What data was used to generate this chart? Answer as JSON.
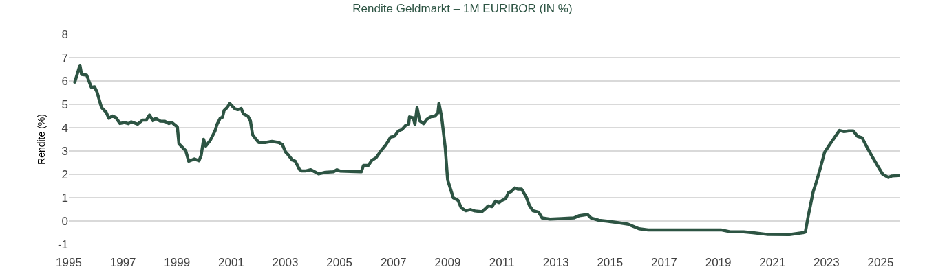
{
  "chart_data": {
    "type": "line",
    "title": "Rendite Geldmarkt – 1M EURIBOR (IN %)",
    "ylabel": "Rendite (%)",
    "x": [
      1995.22,
      1995.41,
      1995.47,
      1995.66,
      1995.83,
      1995.95,
      1996.04,
      1996.21,
      1996.38,
      1996.48,
      1996.61,
      1996.74,
      1996.89,
      1997.06,
      1997.2,
      1997.31,
      1997.54,
      1997.72,
      1997.86,
      1997.98,
      1998.11,
      1998.21,
      1998.38,
      1998.55,
      1998.7,
      1998.8,
      1999.01,
      1999.07,
      1999.22,
      1999.32,
      1999.43,
      1999.64,
      1999.81,
      1999.89,
      1999.98,
      2000.06,
      2000.23,
      2000.4,
      2000.48,
      2000.59,
      2000.68,
      2000.74,
      2000.85,
      2000.95,
      2001.12,
      2001.24,
      2001.37,
      2001.45,
      2001.62,
      2001.71,
      2001.79,
      2001.9,
      2002.02,
      2002.25,
      2002.51,
      2002.76,
      2002.89,
      2003.01,
      2003.09,
      2003.26,
      2003.37,
      2003.53,
      2003.6,
      2003.77,
      2003.94,
      2004.23,
      2004.48,
      2004.78,
      2004.91,
      2005.03,
      2005.81,
      2005.89,
      2006.07,
      2006.2,
      2006.36,
      2006.55,
      2006.72,
      2006.89,
      2007.04,
      2007.18,
      2007.31,
      2007.44,
      2007.56,
      2007.59,
      2007.73,
      2007.79,
      2007.87,
      2007.97,
      2008.11,
      2008.23,
      2008.36,
      2008.53,
      2008.64,
      2008.68,
      2008.78,
      2008.91,
      2009.0,
      2009.08,
      2009.21,
      2009.38,
      2009.5,
      2009.67,
      2009.84,
      2010.01,
      2010.27,
      2010.39,
      2010.5,
      2010.64,
      2010.77,
      2010.9,
      2011.02,
      2011.14,
      2011.25,
      2011.35,
      2011.48,
      2011.59,
      2011.73,
      2011.9,
      2012.02,
      2012.15,
      2012.36,
      2012.49,
      2012.78,
      2013.2,
      2013.66,
      2013.87,
      2014.17,
      2014.3,
      2014.59,
      2014.89,
      2015.23,
      2015.65,
      2016.07,
      2016.41,
      2017.42,
      2019.1,
      2019.44,
      2019.94,
      2020.28,
      2020.79,
      2021.63,
      2022.13,
      2022.22,
      2022.32,
      2022.51,
      2022.62,
      2022.77,
      2022.93,
      2023.1,
      2023.3,
      2023.48,
      2023.65,
      2023.82,
      2023.99,
      2024.15,
      2024.32,
      2024.53,
      2024.7,
      2024.87,
      2025.08,
      2025.29,
      2025.42,
      2025.67
    ],
    "series": [
      {
        "color": "#2d5443",
        "values": [
          5.95,
          6.67,
          6.28,
          6.25,
          5.73,
          5.75,
          5.53,
          4.86,
          4.66,
          4.4,
          4.5,
          4.43,
          4.18,
          4.22,
          4.17,
          4.25,
          4.15,
          4.32,
          4.32,
          4.54,
          4.3,
          4.4,
          4.28,
          4.27,
          4.18,
          4.23,
          4.03,
          3.31,
          3.13,
          3.01,
          2.56,
          2.66,
          2.58,
          2.81,
          3.5,
          3.21,
          3.46,
          3.85,
          4.15,
          4.4,
          4.45,
          4.74,
          4.86,
          5.04,
          4.82,
          4.77,
          4.82,
          4.59,
          4.49,
          4.3,
          3.7,
          3.53,
          3.36,
          3.36,
          3.41,
          3.36,
          3.28,
          2.96,
          2.86,
          2.61,
          2.56,
          2.2,
          2.15,
          2.15,
          2.2,
          2.02,
          2.09,
          2.11,
          2.2,
          2.14,
          2.11,
          2.38,
          2.38,
          2.6,
          2.72,
          3.03,
          3.27,
          3.59,
          3.64,
          3.86,
          3.92,
          4.09,
          4.16,
          4.46,
          4.42,
          4.14,
          4.85,
          4.29,
          4.17,
          4.36,
          4.46,
          4.49,
          4.63,
          5.05,
          4.44,
          3.15,
          1.76,
          1.47,
          0.99,
          0.89,
          0.57,
          0.44,
          0.49,
          0.43,
          0.4,
          0.52,
          0.65,
          0.62,
          0.85,
          0.79,
          0.89,
          0.95,
          1.22,
          1.27,
          1.42,
          1.37,
          1.37,
          1.04,
          0.67,
          0.44,
          0.38,
          0.13,
          0.08,
          0.1,
          0.13,
          0.23,
          0.28,
          0.13,
          0.03,
          -0.01,
          -0.06,
          -0.13,
          -0.33,
          -0.38,
          -0.38,
          -0.38,
          -0.46,
          -0.46,
          -0.5,
          -0.57,
          -0.58,
          -0.5,
          -0.47,
          0.17,
          1.26,
          1.65,
          2.25,
          2.94,
          3.24,
          3.58,
          3.88,
          3.83,
          3.86,
          3.86,
          3.63,
          3.56,
          3.09,
          2.74,
          2.4,
          2.0,
          1.87,
          1.93,
          1.95
        ]
      }
    ],
    "xlim": [
      1995,
      2025.7
    ],
    "xticks": [
      1995,
      1997,
      1999,
      2001,
      2003,
      2005,
      2007,
      2009,
      2011,
      2013,
      2015,
      2017,
      2019,
      2021,
      2023,
      2025
    ],
    "ylim": [
      -1,
      8
    ],
    "yticks": [
      -1,
      0,
      1,
      2,
      3,
      4,
      5,
      6,
      7,
      8
    ],
    "grid": "y",
    "line_style": "solid",
    "marker": "none"
  }
}
